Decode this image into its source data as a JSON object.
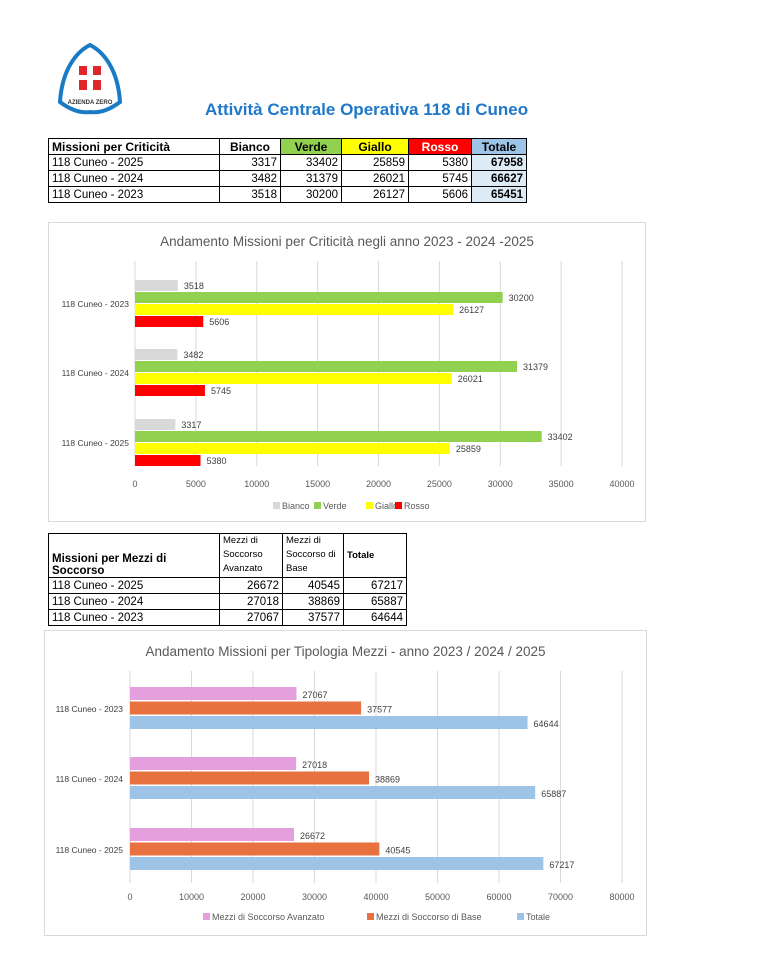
{
  "logo": {
    "text": "AZIENDA ZERO",
    "colors": {
      "ring": "#1a7bc4",
      "cross": "#e0252b"
    }
  },
  "page_title": "Attività Centrale Operativa 118 di Cuneo",
  "table_criticita": {
    "headers": [
      "Missioni per Criticità",
      "Bianco",
      "Verde",
      "Giallo",
      "Rosso",
      "Totale"
    ],
    "header_colors": [
      "#ffffff",
      "#ffffff",
      "#92d050",
      "#ffff00",
      "#ff0000",
      "#9dc3e6"
    ],
    "rows": [
      {
        "label": "118 Cuneo - 2025",
        "values": [
          "3317",
          "33402",
          "25859",
          "5380"
        ],
        "total": "67958"
      },
      {
        "label": "118 Cuneo - 2024",
        "values": [
          "3482",
          "31379",
          "26021",
          "5745"
        ],
        "total": "66627"
      },
      {
        "label": "118 Cuneo - 2023",
        "values": [
          "3518",
          "30200",
          "26127",
          "5606"
        ],
        "total": "65451"
      }
    ]
  },
  "table_mezzi": {
    "headers": [
      "Missioni per Mezzi di Soccorso",
      "Mezzi di Soccorso Avanzato",
      "Mezzi di Soccorso di Base",
      "Totale"
    ],
    "rows": [
      {
        "label": "118 Cuneo - 2025",
        "values": [
          "26672",
          "40545",
          "67217"
        ]
      },
      {
        "label": "118 Cuneo - 2024",
        "values": [
          "27018",
          "38869",
          "65887"
        ]
      },
      {
        "label": "118 Cuneo - 2023",
        "values": [
          "27067",
          "37577",
          "64644"
        ]
      }
    ]
  },
  "chart_data": [
    {
      "type": "bar",
      "orientation": "horizontal",
      "title": "Andamento Missioni per Criticità negli anno 2023 - 2024 -2025",
      "categories": [
        "118 Cuneo - 2023",
        "118 Cuneo - 2024",
        "118 Cuneo - 2025"
      ],
      "series": [
        {
          "name": "Bianco",
          "color": "#d9d9d9",
          "values": [
            3518,
            3482,
            3317
          ]
        },
        {
          "name": "Verde",
          "color": "#92d050",
          "values": [
            30200,
            31379,
            33402
          ]
        },
        {
          "name": "Giallo",
          "color": "#ffff00",
          "values": [
            26127,
            26021,
            25859
          ]
        },
        {
          "name": "Rosso",
          "color": "#ff0000",
          "values": [
            5606,
            5745,
            5380
          ]
        }
      ],
      "xlim": [
        0,
        40000
      ],
      "xticks": [
        0,
        5000,
        10000,
        15000,
        20000,
        25000,
        30000,
        35000,
        40000
      ],
      "grid": true,
      "legend": "bottom"
    },
    {
      "type": "bar",
      "orientation": "horizontal",
      "title": "Andamento Missioni per Tipologia Mezzi - anno 2023 / 2024 / 2025",
      "categories": [
        "118 Cuneo - 2023",
        "118 Cuneo - 2024",
        "118 Cuneo - 2025"
      ],
      "series": [
        {
          "name": "Mezzi di Soccorso Avanzato",
          "color": "#e4a0dc",
          "values": [
            27067,
            27018,
            26672
          ]
        },
        {
          "name": "Mezzi di Soccorso di Base",
          "color": "#e87140",
          "values": [
            37577,
            38869,
            40545
          ]
        },
        {
          "name": "Totale",
          "color": "#9dc3e6",
          "values": [
            64644,
            65887,
            67217
          ]
        }
      ],
      "xlim": [
        0,
        80000
      ],
      "xticks": [
        0,
        10000,
        20000,
        30000,
        40000,
        50000,
        60000,
        70000,
        80000
      ],
      "grid": true,
      "legend": "bottom"
    }
  ]
}
